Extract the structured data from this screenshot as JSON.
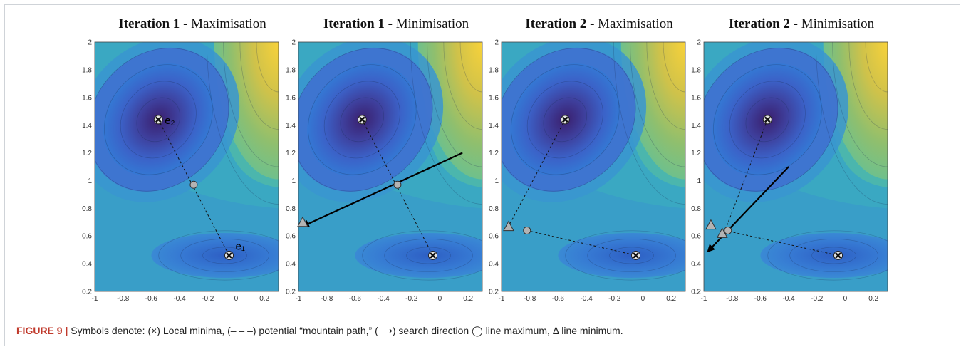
{
  "figure": {
    "label": "FIGURE 9 |",
    "caption_text": "Symbols denote: (×) Local minima, (– – –) potential “mountain path,” (⟶) search direction ◯ line maximum, Δ line minimum."
  },
  "colors": {
    "contour_low": "#3f2a7a",
    "contour_mid": "#2f8fcf",
    "contour_high": "#fbe03a",
    "marker_fill": "#b3b3b3",
    "path_line": "#000000"
  },
  "chart_data": [
    {
      "type": "contour",
      "title_bold": "Iteration 1",
      "title_rest": " - Maximisation",
      "xlim": [
        -1,
        0.3
      ],
      "ylim": [
        0.2,
        2
      ],
      "x_ticks": [
        "-1",
        "-0.8",
        "-0.6",
        "-0.4",
        "-0.2",
        "0",
        "0.2"
      ],
      "y_ticks": [
        "0.2",
        "0.4",
        "0.6",
        "0.8",
        "1",
        "1.2",
        "1.4",
        "1.6",
        "1.8",
        "2"
      ],
      "local_minima": [
        {
          "x": -0.55,
          "y": 1.44,
          "label": "e₂"
        },
        {
          "x": -0.05,
          "y": 0.46,
          "label": "e₁"
        }
      ],
      "mountain_paths": [
        [
          [
            -0.55,
            1.44
          ],
          [
            -0.05,
            0.46
          ]
        ]
      ],
      "line_maxima": [
        {
          "x": -0.3,
          "y": 0.97
        }
      ],
      "line_minima": [],
      "search_directions": []
    },
    {
      "type": "contour",
      "title_bold": "Iteration 1",
      "title_rest": " - Minimisation",
      "xlim": [
        -1,
        0.3
      ],
      "ylim": [
        0.2,
        2
      ],
      "x_ticks": [
        "-1",
        "-0.8",
        "-0.6",
        "-0.4",
        "-0.2",
        "0",
        "0.2"
      ],
      "y_ticks": [
        "0.2",
        "0.4",
        "0.6",
        "0.8",
        "1",
        "1.2",
        "1.4",
        "1.6",
        "1.8",
        "2"
      ],
      "local_minima": [
        {
          "x": -0.55,
          "y": 1.44
        },
        {
          "x": -0.05,
          "y": 0.46
        }
      ],
      "mountain_paths": [
        [
          [
            -0.55,
            1.44
          ],
          [
            -0.05,
            0.46
          ]
        ]
      ],
      "line_maxima": [
        {
          "x": -0.3,
          "y": 0.97
        }
      ],
      "line_minima": [
        {
          "x": -0.97,
          "y": 0.7
        }
      ],
      "search_directions": [
        [
          [
            0.16,
            1.2
          ],
          [
            -0.97,
            0.67
          ]
        ]
      ]
    },
    {
      "type": "contour",
      "title_bold": "Iteration 2",
      "title_rest": " - Maximisation",
      "xlim": [
        -1,
        0.3
      ],
      "ylim": [
        0.2,
        2
      ],
      "x_ticks": [
        "-1",
        "-0.8",
        "-0.6",
        "-0.4",
        "-0.2",
        "0",
        "0.2"
      ],
      "y_ticks": [
        "0.2",
        "0.4",
        "0.6",
        "0.8",
        "1",
        "1.2",
        "1.4",
        "1.6",
        "1.8",
        "2"
      ],
      "local_minima": [
        {
          "x": -0.55,
          "y": 1.44
        },
        {
          "x": -0.05,
          "y": 0.46
        }
      ],
      "mountain_paths": [
        [
          [
            -0.55,
            1.44
          ],
          [
            -0.95,
            0.67
          ]
        ],
        [
          [
            -0.82,
            0.64
          ],
          [
            -0.05,
            0.46
          ]
        ]
      ],
      "line_maxima": [
        {
          "x": -0.82,
          "y": 0.64
        }
      ],
      "line_minima": [
        {
          "x": -0.95,
          "y": 0.67
        }
      ],
      "search_directions": []
    },
    {
      "type": "contour",
      "title_bold": "Iteration 2",
      "title_rest": " - Minimisation",
      "xlim": [
        -1,
        0.3
      ],
      "ylim": [
        0.2,
        2
      ],
      "x_ticks": [
        "-1",
        "-0.8",
        "-0.6",
        "-0.4",
        "-0.2",
        "0",
        "0.2"
      ],
      "y_ticks": [
        "0.2",
        "0.4",
        "0.6",
        "0.8",
        "1",
        "1.2",
        "1.4",
        "1.6",
        "1.8",
        "2"
      ],
      "local_minima": [
        {
          "x": -0.55,
          "y": 1.44
        },
        {
          "x": -0.05,
          "y": 0.46
        }
      ],
      "mountain_paths": [
        [
          [
            -0.55,
            1.44
          ],
          [
            -0.85,
            0.64
          ]
        ],
        [
          [
            -0.85,
            0.64
          ],
          [
            -0.05,
            0.46
          ]
        ]
      ],
      "line_maxima": [
        {
          "x": -0.83,
          "y": 0.64
        }
      ],
      "line_minima": [
        {
          "x": -0.95,
          "y": 0.68
        },
        {
          "x": -0.87,
          "y": 0.62
        }
      ],
      "search_directions": [
        [
          [
            -0.4,
            1.1
          ],
          [
            -0.97,
            0.49
          ]
        ]
      ]
    }
  ]
}
